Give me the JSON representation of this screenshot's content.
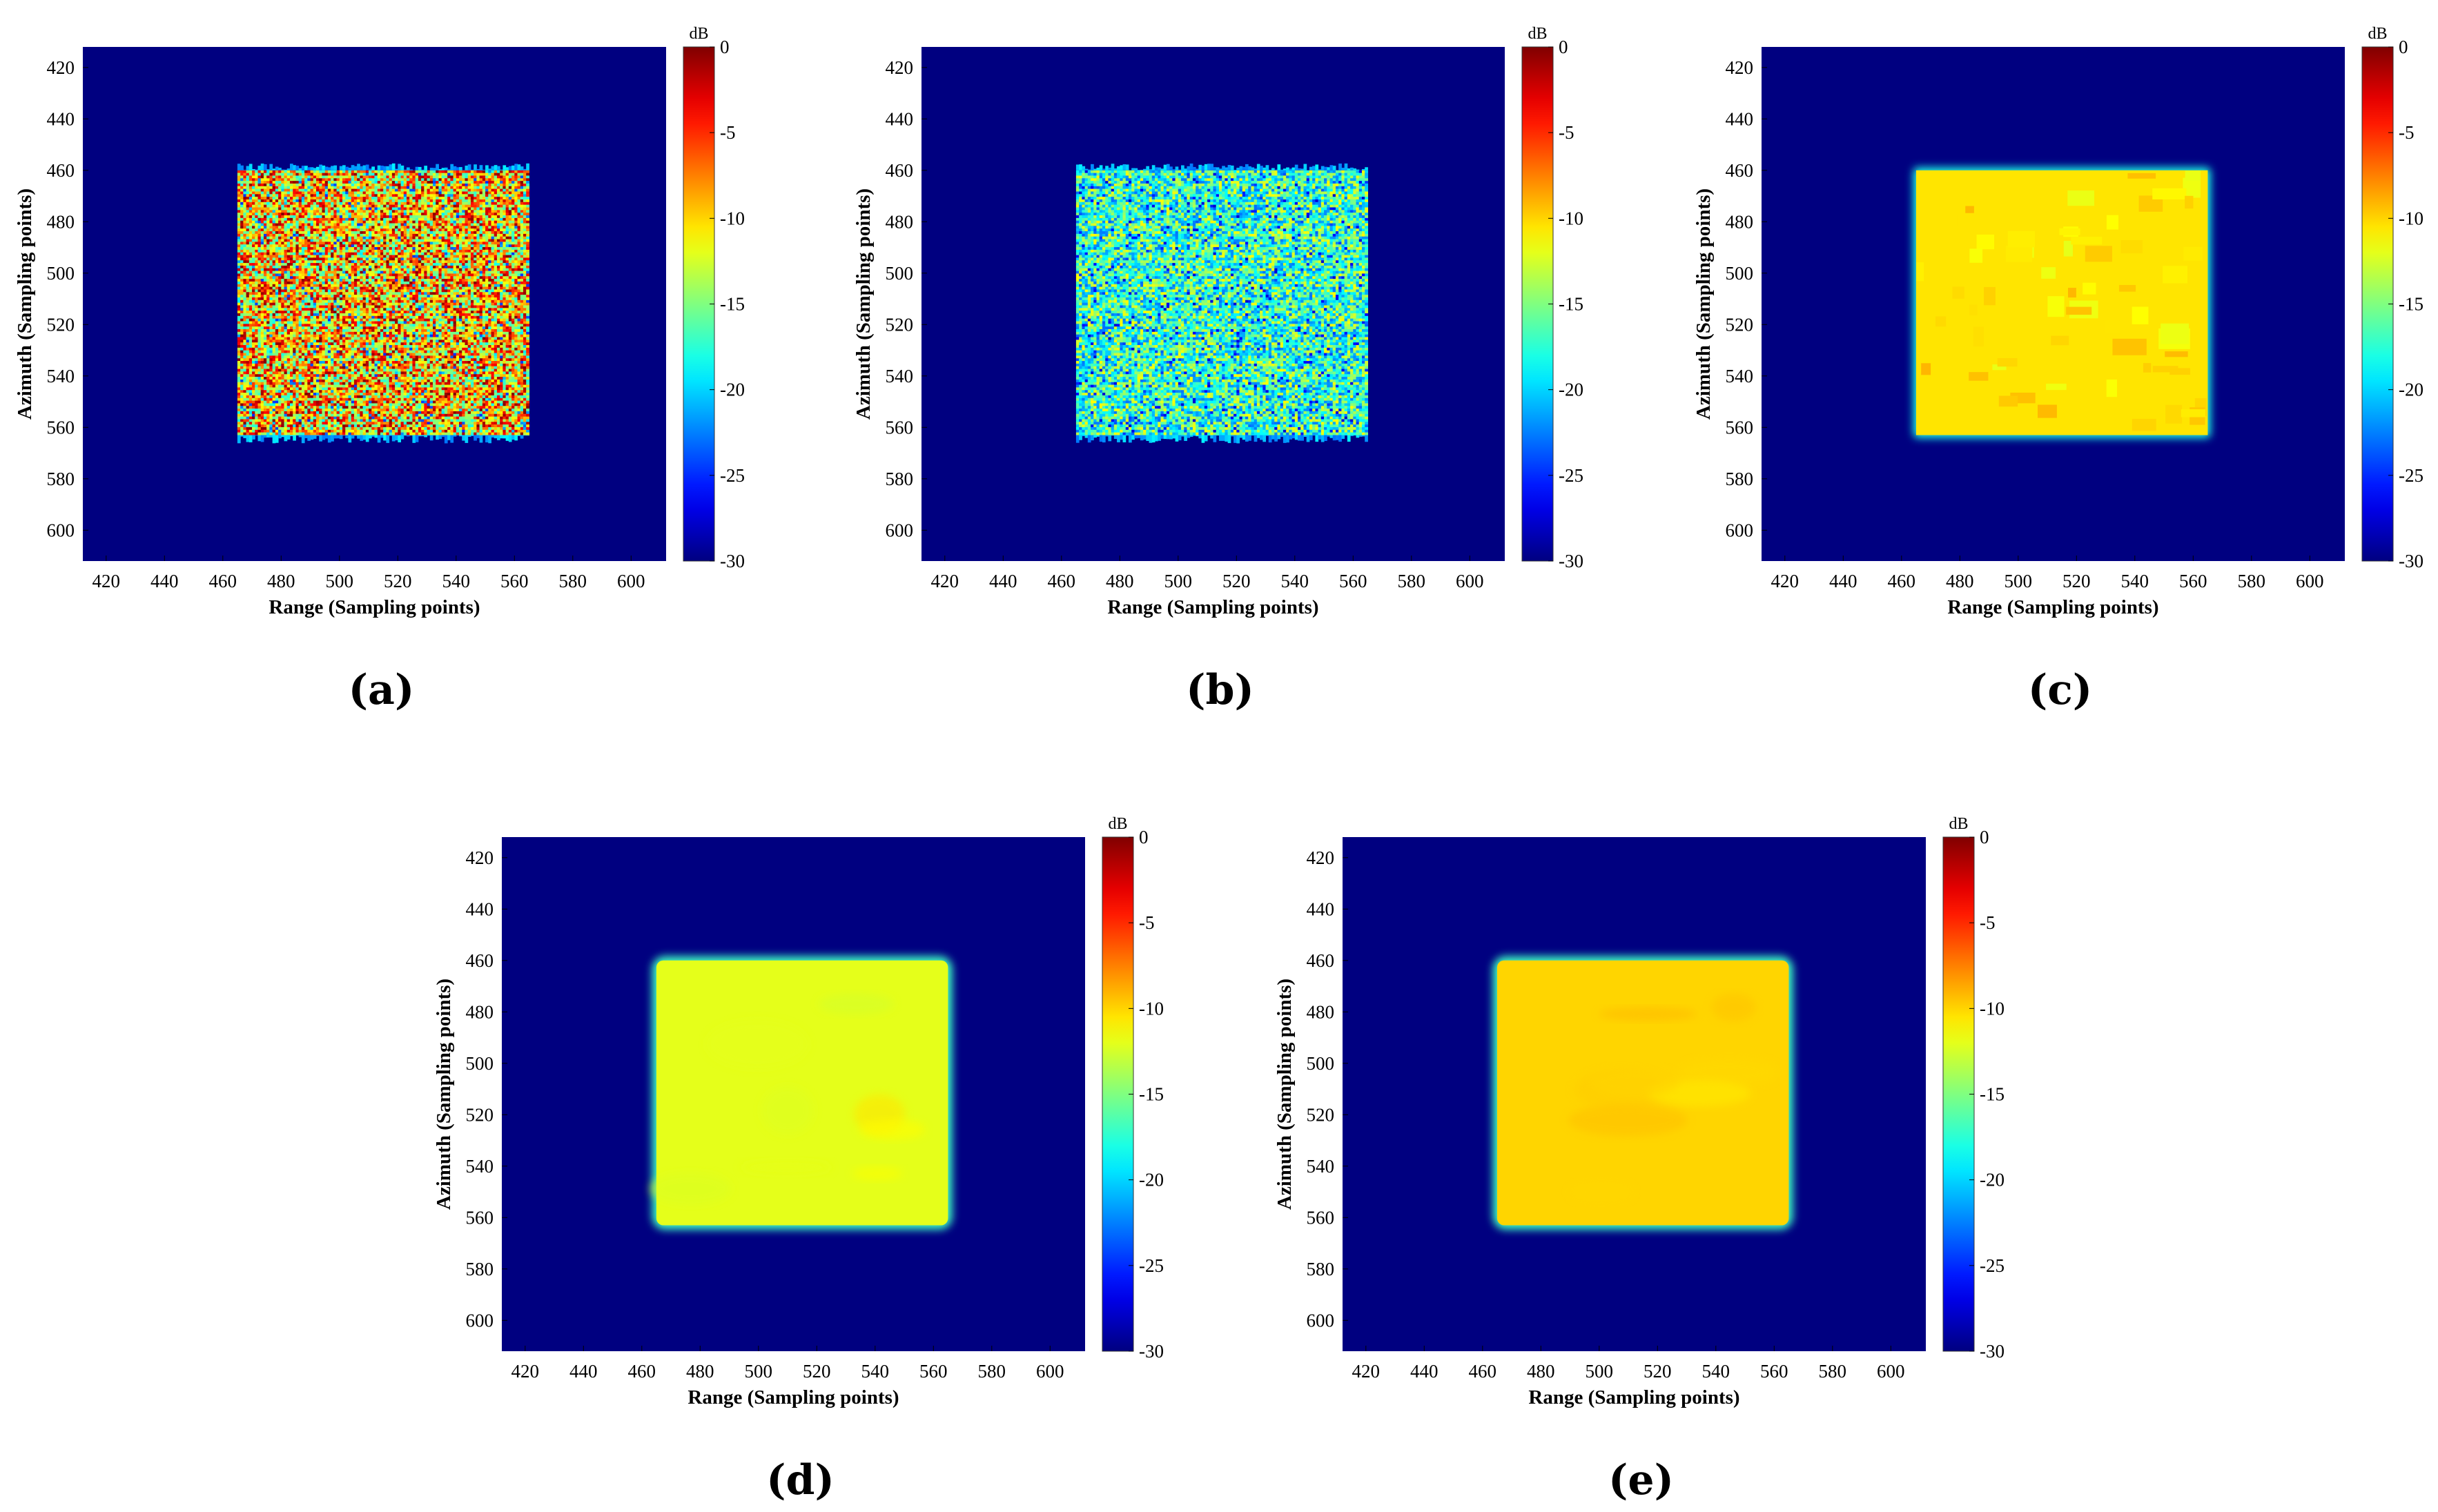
{
  "figure": {
    "panels": [
      {
        "caption": "(a)",
        "texture": "noisy",
        "intensity_db": -9,
        "spread_db": 9
      },
      {
        "caption": "(b)",
        "texture": "noisy",
        "intensity_db": -17,
        "spread_db": 6
      },
      {
        "caption": "(c)",
        "texture": "blocky",
        "intensity_db": -10.5,
        "spread_db": 1.5
      },
      {
        "caption": "(d)",
        "texture": "smooth",
        "intensity_db": -12,
        "spread_db": 1.5
      },
      {
        "caption": "(e)",
        "texture": "smooth",
        "intensity_db": -10,
        "spread_db": 0.8
      }
    ]
  },
  "chart_data": {
    "type": "heatmap",
    "xlabel": "Range (Sampling points)",
    "ylabel": "Azimuth (Sampling points)",
    "xlim": [
      412,
      612
    ],
    "ylim": [
      412,
      612
    ],
    "x_ticks": [
      420,
      440,
      460,
      480,
      500,
      520,
      540,
      560,
      580,
      600
    ],
    "y_ticks": [
      420,
      440,
      460,
      480,
      500,
      520,
      540,
      560,
      580,
      600
    ],
    "colorbar": {
      "unit": "dB",
      "range": [
        -30,
        0
      ],
      "ticks": [
        0,
        -5,
        -10,
        -15,
        -20,
        -25,
        -30
      ],
      "colormap": "jet"
    },
    "background_db": -30,
    "target": {
      "x_range": [
        465,
        565
      ],
      "y_range": [
        460,
        563
      ]
    }
  }
}
